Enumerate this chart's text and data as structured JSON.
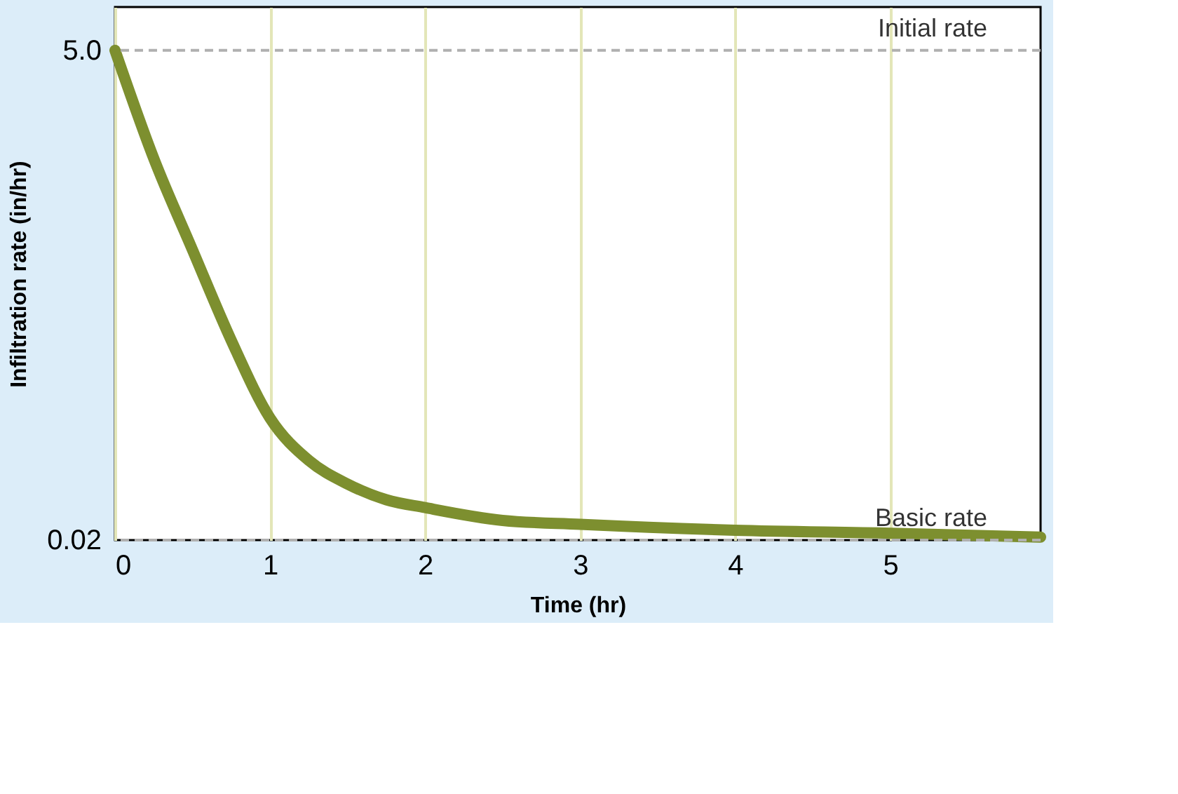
{
  "chart_data": {
    "type": "line",
    "xlabel": "Time (hr)",
    "ylabel": "Infiltration rate (in/hr)",
    "x": [
      0,
      0.25,
      0.5,
      0.75,
      1,
      1.25,
      1.5,
      1.75,
      2,
      2.5,
      3,
      4,
      5,
      5.97
    ],
    "series": [
      {
        "color": "#7d8f2f",
        "values": [
          5.0,
          3.9,
          2.97,
          2.05,
          1.26,
          0.83,
          0.59,
          0.43,
          0.35,
          0.22,
          0.18,
          0.12,
          0.09,
          0.05
        ]
      }
    ],
    "xlim": [
      0,
      5.97
    ],
    "xticks": [
      0,
      1,
      2,
      3,
      4,
      5
    ],
    "ylim": [
      0.02,
      5.44
    ],
    "yticks": [
      {
        "value": 5.0,
        "label": "5.0"
      },
      0.02
    ],
    "grid": "x",
    "marker": "none",
    "line_style": "solid",
    "ref_lines": [
      {
        "axis": "y",
        "value": 5.0,
        "label": "Initial rate",
        "color": "#b0b0b0",
        "line_style": "dashed"
      },
      {
        "axis": "y",
        "value": 0.02,
        "label": "Basic rate",
        "color": "#b0b0b0",
        "line_style": "dashed"
      }
    ]
  }
}
